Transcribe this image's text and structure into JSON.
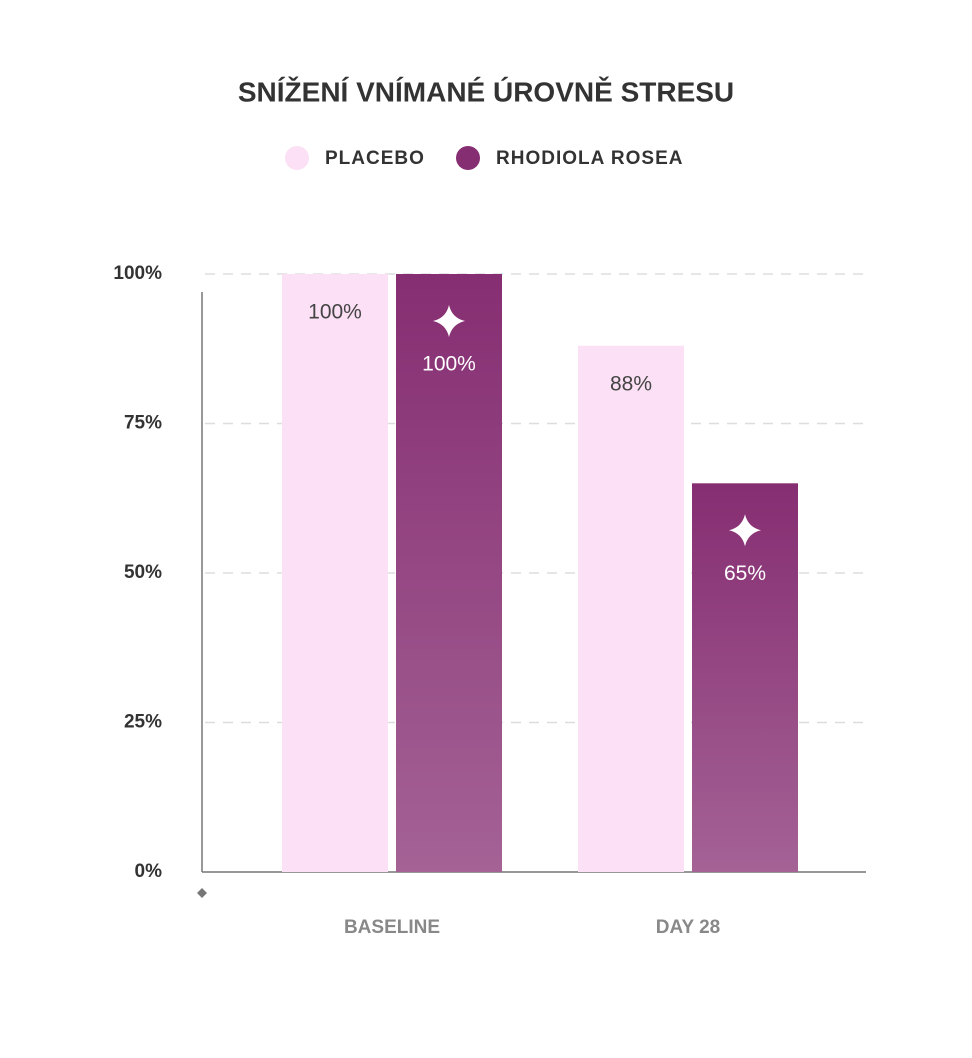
{
  "chart_data": {
    "type": "bar",
    "title": "SNÍŽENÍ VNÍMANÉ ÚROVNĚ STRESU",
    "categories": [
      "BASELINE",
      "DAY 28"
    ],
    "series": [
      {
        "name": "PLACEBO",
        "color": "#fce0f5",
        "values": [
          100,
          88
        ],
        "value_labels": [
          "100%",
          "88%"
        ]
      },
      {
        "name": "RHODIOLA ROSEA",
        "color": "#862e72",
        "values": [
          100,
          65
        ],
        "value_labels": [
          "100%",
          "65%"
        ]
      }
    ],
    "ylim": [
      0,
      100
    ],
    "yticks": [
      {
        "value": 0,
        "label": "0%"
      },
      {
        "value": 25,
        "label": "25%"
      },
      {
        "value": 50,
        "label": "50%"
      },
      {
        "value": 75,
        "label": "75%"
      },
      {
        "value": 100,
        "label": "100%"
      }
    ],
    "grid": true
  }
}
